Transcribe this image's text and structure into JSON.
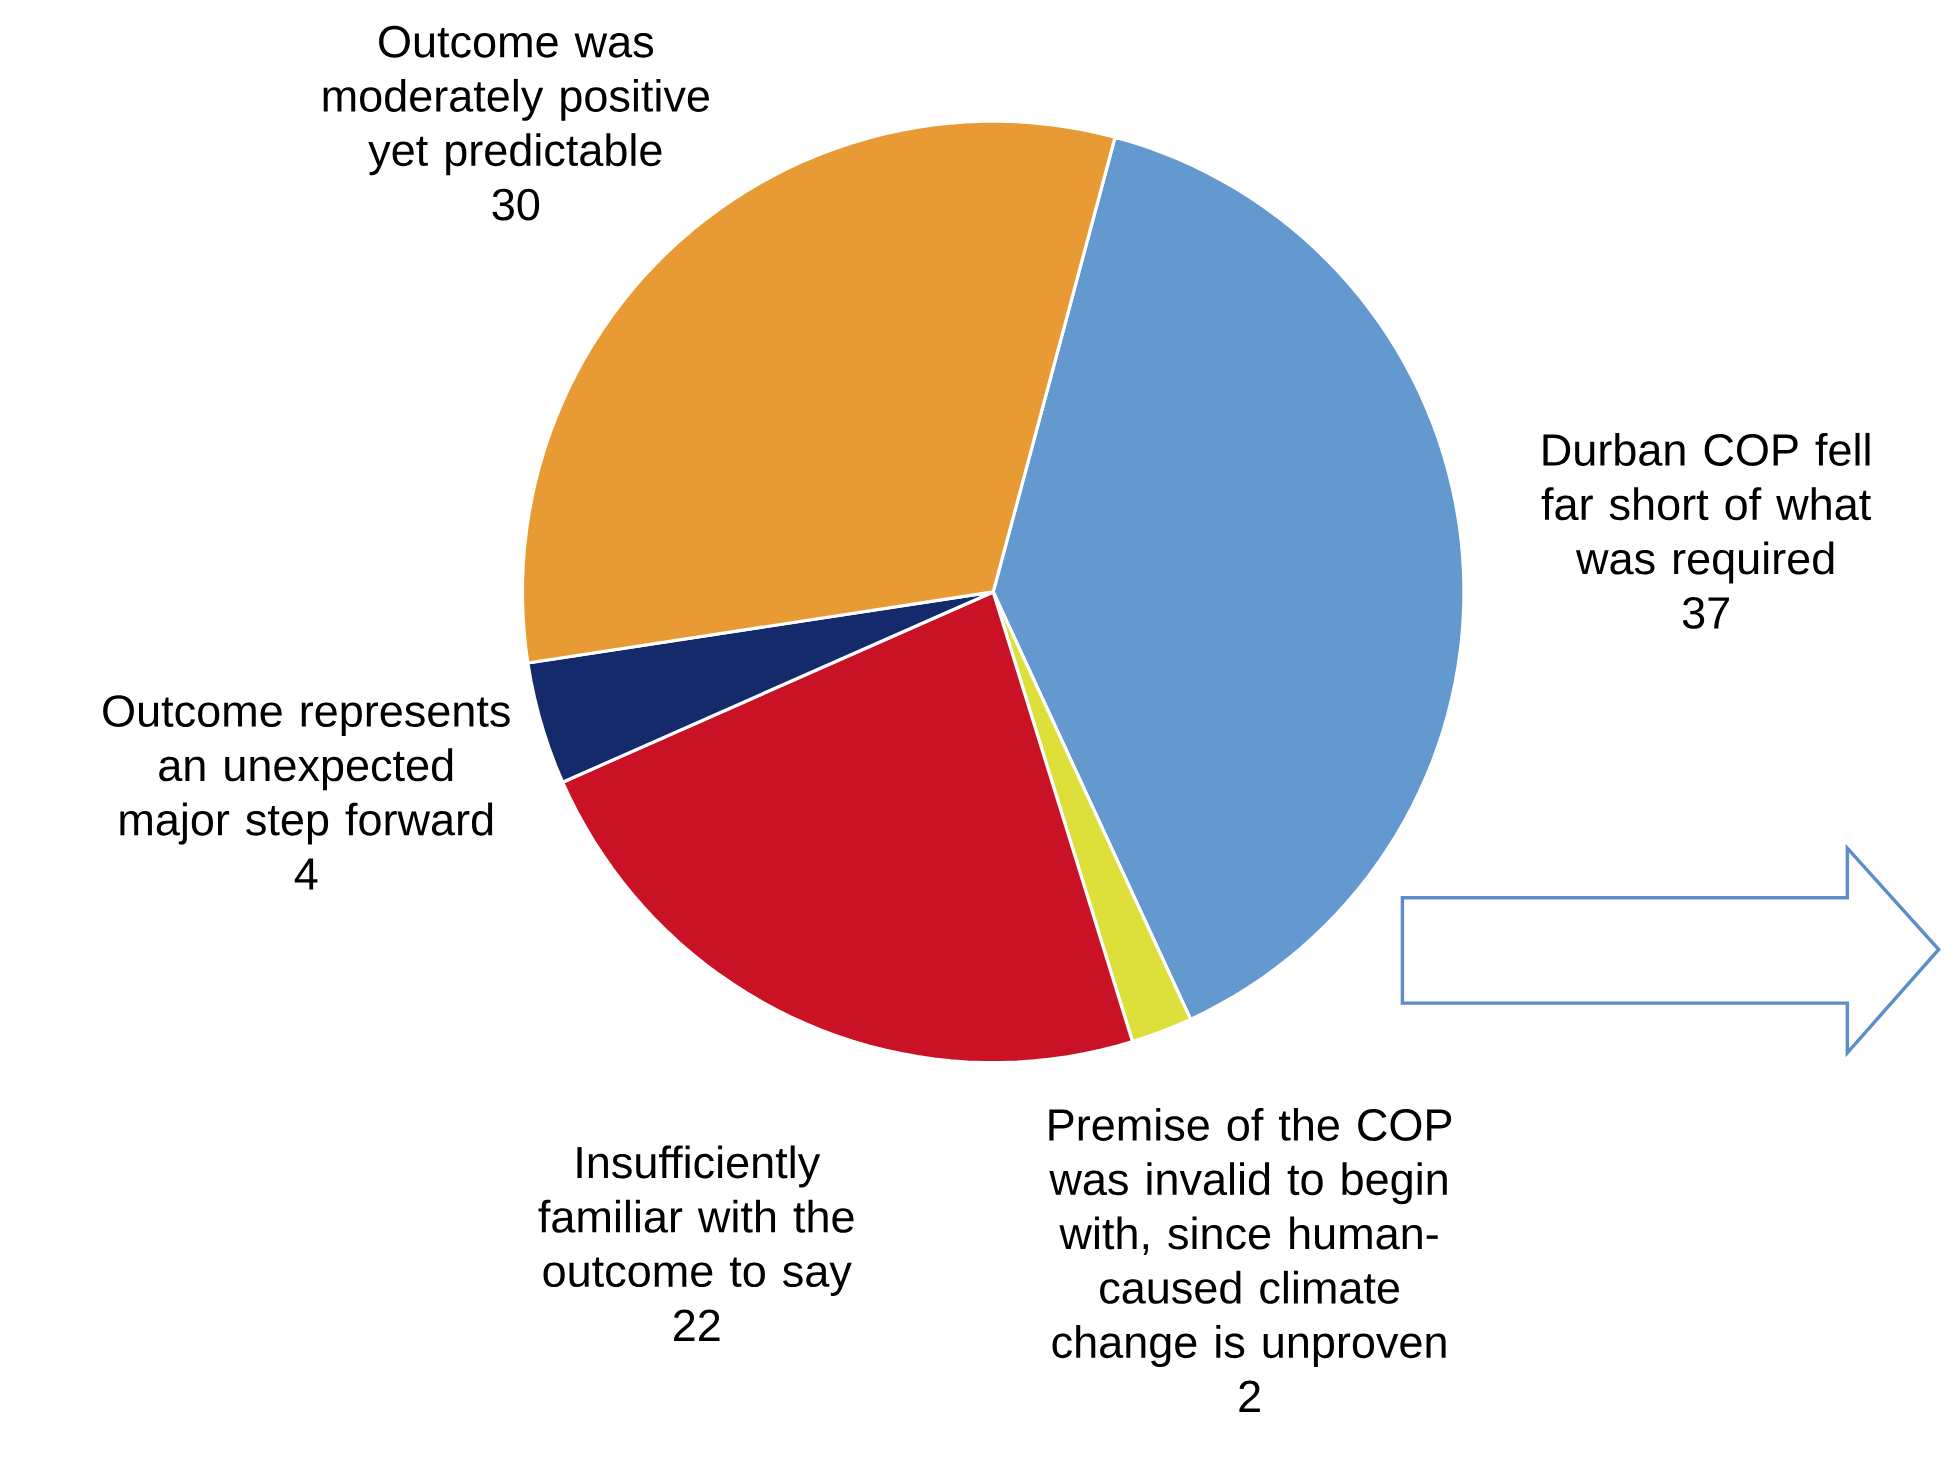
{
  "chart_data": {
    "type": "pie",
    "categories": [
      "Durban COP fell far short of what was required",
      "Premise of the COP was invalid to begin with, since human-caused climate change is unproven",
      "Insufficiently familiar with the outcome to say",
      "Outcome represents an unexpected major step forward",
      "Outcome was moderately positive yet predictable"
    ],
    "values": [
      37,
      2,
      22,
      4,
      30
    ],
    "colors": [
      "#6399cf",
      "#dde03a",
      "#c91225",
      "#142a6b",
      "#e89b34"
    ],
    "data_labels": true
  }
}
